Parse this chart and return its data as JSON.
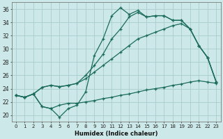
{
  "xlabel": "Humidex (Indice chaleur)",
  "bg_color": "#cce8e8",
  "grid_color": "#aacccc",
  "line_color": "#1a6b5a",
  "xlim": [
    -0.5,
    23.5
  ],
  "ylim": [
    19.0,
    37.0
  ],
  "yticks": [
    20,
    22,
    24,
    26,
    28,
    30,
    32,
    34,
    36
  ],
  "xticks": [
    0,
    1,
    2,
    3,
    4,
    5,
    6,
    7,
    8,
    9,
    10,
    11,
    12,
    13,
    14,
    15,
    16,
    17,
    18,
    19,
    20,
    21,
    22,
    23
  ],
  "series1_x": [
    0,
    1,
    2,
    3,
    4,
    5,
    6,
    7,
    8,
    9,
    10,
    11,
    12,
    13,
    14,
    15,
    16,
    17,
    18,
    19,
    20,
    21,
    22,
    23
  ],
  "series1_y": [
    23.0,
    22.7,
    23.2,
    21.3,
    21.0,
    19.7,
    21.0,
    21.5,
    23.5,
    29.0,
    31.5,
    35.0,
    36.2,
    35.2,
    35.8,
    34.8,
    35.0,
    35.0,
    34.3,
    34.3,
    33.0,
    30.5,
    28.7,
    25.0
  ],
  "series2_x": [
    0,
    1,
    2,
    3,
    4,
    5,
    6,
    7,
    8,
    9,
    10,
    11,
    12,
    13,
    14,
    15,
    16,
    17,
    18,
    19,
    20,
    21,
    22,
    23
  ],
  "series2_y": [
    23.0,
    22.7,
    23.2,
    24.2,
    24.5,
    24.3,
    24.5,
    24.8,
    26.0,
    27.5,
    29.2,
    31.5,
    33.0,
    34.8,
    35.5,
    34.8,
    35.0,
    35.0,
    34.3,
    34.3,
    33.0,
    30.5,
    28.7,
    25.0
  ],
  "series3_x": [
    0,
    1,
    2,
    3,
    4,
    5,
    6,
    7,
    8,
    9,
    10,
    11,
    12,
    13,
    14,
    15,
    16,
    17,
    18,
    19,
    20,
    21,
    22,
    23
  ],
  "series3_y": [
    23.0,
    22.7,
    23.2,
    24.2,
    24.5,
    24.3,
    24.5,
    24.8,
    25.5,
    26.5,
    27.5,
    28.5,
    29.5,
    30.5,
    31.5,
    32.0,
    32.5,
    33.0,
    33.5,
    33.8,
    33.0,
    30.5,
    28.7,
    25.0
  ],
  "series4_x": [
    0,
    1,
    2,
    3,
    4,
    5,
    6,
    7,
    8,
    9,
    10,
    11,
    12,
    13,
    14,
    15,
    16,
    17,
    18,
    19,
    20,
    21,
    22,
    23
  ],
  "series4_y": [
    23.0,
    22.7,
    23.2,
    21.3,
    21.0,
    21.5,
    21.8,
    21.8,
    22.0,
    22.2,
    22.5,
    22.7,
    23.0,
    23.2,
    23.5,
    23.8,
    24.0,
    24.2,
    24.5,
    24.7,
    25.0,
    25.2,
    25.0,
    24.8
  ]
}
